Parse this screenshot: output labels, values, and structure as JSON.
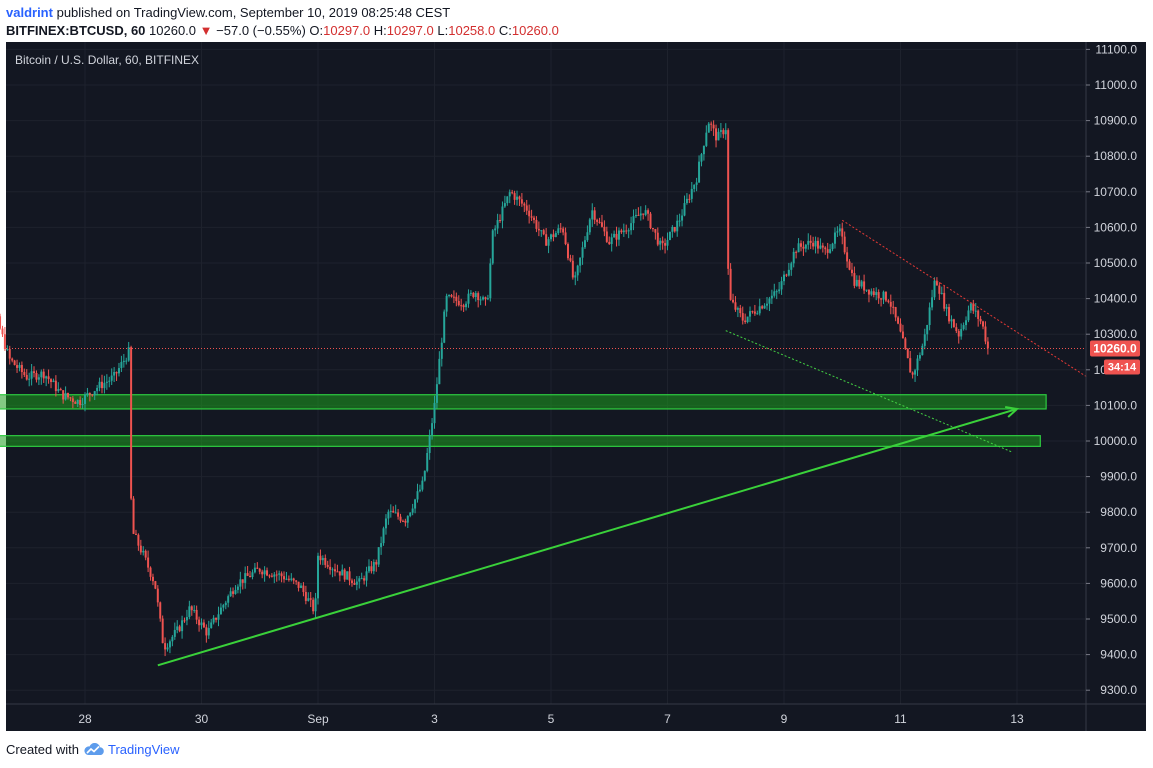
{
  "header": {
    "author": "valdrint",
    "published": "published on TradingView.com, September 10, 2019 08:25:48 CEST",
    "symbol": "BITFINEX:BTCUSD, 60",
    "last": "10260.0",
    "change": "−57.0 (−0.55%)",
    "o_label": "O:",
    "o": "10297.0",
    "h_label": "H:",
    "h": "10297.0",
    "l_label": "L:",
    "l": "10258.0",
    "c_label": "C:",
    "c": "10260.0"
  },
  "footer": {
    "created_with": "Created with",
    "brand": "TradingView"
  },
  "colors": {
    "background": "#131722",
    "up": "#26a69a",
    "down": "#ef5350",
    "zone": "#1e9e1e",
    "trend": "#3ad13a",
    "price_line": "#ef5350"
  },
  "chart_data": {
    "type": "candlestick",
    "title": "Bitcoin / U.S. Dollar, 60, BITFINEX",
    "interval": "60",
    "x_tick_labels": [
      "28",
      "30",
      "Sep",
      "3",
      "5",
      "7",
      "9",
      "11",
      "13"
    ],
    "y_tick_labels": [
      "11100.0",
      "11000.0",
      "10900.0",
      "10800.0",
      "10700.0",
      "10600.0",
      "10500.0",
      "10400.0",
      "10300.0",
      "10200.0",
      "10100.0",
      "10000.0",
      "9900.0",
      "9800.0",
      "9700.0",
      "9600.0",
      "9500.0",
      "9400.0",
      "9300.0"
    ],
    "ylim": [
      9260,
      11110
    ],
    "last_price": "10260.0",
    "countdown": "34:14",
    "price_path": [
      {
        "d": 26.0,
        "p": 10360
      },
      {
        "d": 26.4,
        "p": 10390
      },
      {
        "d": 26.7,
        "p": 10230
      },
      {
        "d": 27.0,
        "p": 10180
      },
      {
        "d": 27.3,
        "p": 10190
      },
      {
        "d": 27.6,
        "p": 10130
      },
      {
        "d": 27.9,
        "p": 10110
      },
      {
        "d": 28.2,
        "p": 10150
      },
      {
        "d": 28.5,
        "p": 10180
      },
      {
        "d": 28.75,
        "p": 10250
      },
      {
        "d": 28.8,
        "p": 9750
      },
      {
        "d": 29.0,
        "p": 9680
      },
      {
        "d": 29.2,
        "p": 9600
      },
      {
        "d": 29.35,
        "p": 9420
      },
      {
        "d": 29.6,
        "p": 9470
      },
      {
        "d": 29.8,
        "p": 9530
      },
      {
        "d": 30.1,
        "p": 9460
      },
      {
        "d": 30.3,
        "p": 9520
      },
      {
        "d": 30.6,
        "p": 9600
      },
      {
        "d": 31.0,
        "p": 9640
      },
      {
        "d": 31.4,
        "p": 9620
      },
      {
        "d": 31.7,
        "p": 9590
      },
      {
        "d": 31.95,
        "p": 9520
      },
      {
        "d": 32.0,
        "p": 9680
      },
      {
        "d": 32.3,
        "p": 9640
      },
      {
        "d": 32.7,
        "p": 9600
      },
      {
        "d": 33.0,
        "p": 9660
      },
      {
        "d": 33.2,
        "p": 9800
      },
      {
        "d": 33.5,
        "p": 9780
      },
      {
        "d": 33.8,
        "p": 9880
      },
      {
        "d": 34.0,
        "p": 10100
      },
      {
        "d": 34.2,
        "p": 10400
      },
      {
        "d": 34.5,
        "p": 10390
      },
      {
        "d": 34.7,
        "p": 10420
      },
      {
        "d": 34.9,
        "p": 10380
      },
      {
        "d": 35.0,
        "p": 10580
      },
      {
        "d": 35.3,
        "p": 10700
      },
      {
        "d": 35.6,
        "p": 10650
      },
      {
        "d": 35.9,
        "p": 10560
      },
      {
        "d": 36.2,
        "p": 10600
      },
      {
        "d": 36.4,
        "p": 10440
      },
      {
        "d": 36.7,
        "p": 10650
      },
      {
        "d": 37.0,
        "p": 10560
      },
      {
        "d": 37.3,
        "p": 10600
      },
      {
        "d": 37.6,
        "p": 10650
      },
      {
        "d": 37.9,
        "p": 10540
      },
      {
        "d": 38.2,
        "p": 10620
      },
      {
        "d": 38.5,
        "p": 10740
      },
      {
        "d": 38.7,
        "p": 10900
      },
      {
        "d": 38.85,
        "p": 10850
      },
      {
        "d": 39.0,
        "p": 10880
      },
      {
        "d": 39.05,
        "p": 10400
      },
      {
        "d": 39.3,
        "p": 10340
      },
      {
        "d": 39.6,
        "p": 10380
      },
      {
        "d": 39.9,
        "p": 10420
      },
      {
        "d": 40.2,
        "p": 10540
      },
      {
        "d": 40.5,
        "p": 10560
      },
      {
        "d": 40.7,
        "p": 10530
      },
      {
        "d": 40.95,
        "p": 10590
      },
      {
        "d": 41.2,
        "p": 10450
      },
      {
        "d": 41.5,
        "p": 10420
      },
      {
        "d": 41.8,
        "p": 10400
      },
      {
        "d": 42.0,
        "p": 10300
      },
      {
        "d": 42.2,
        "p": 10180
      },
      {
        "d": 42.4,
        "p": 10280
      },
      {
        "d": 42.6,
        "p": 10460
      },
      {
        "d": 42.8,
        "p": 10360
      },
      {
        "d": 43.0,
        "p": 10300
      },
      {
        "d": 43.2,
        "p": 10380
      },
      {
        "d": 43.4,
        "p": 10330
      },
      {
        "d": 43.5,
        "p": 10260
      }
    ],
    "drawings": {
      "support_zones": [
        {
          "from_d": 26.4,
          "to_d": 44.5,
          "low": 10090,
          "high": 10130
        },
        {
          "from_d": 26.0,
          "to_d": 44.4,
          "low": 9985,
          "high": 10015
        }
      ],
      "rising_trendline": {
        "from": {
          "d": 29.25,
          "p": 9370
        },
        "to": {
          "d": 44.0,
          "p": 10090
        }
      },
      "falling_trendline_red": {
        "from": {
          "d": 41.0,
          "p": 10620
        },
        "to": {
          "d": 45.2,
          "p": 10180
        }
      },
      "falling_trendline_green_dotted": {
        "from": {
          "d": 39.0,
          "p": 10310
        },
        "to": {
          "d": 43.9,
          "p": 9970
        }
      },
      "last_price_line": 10260
    }
  }
}
